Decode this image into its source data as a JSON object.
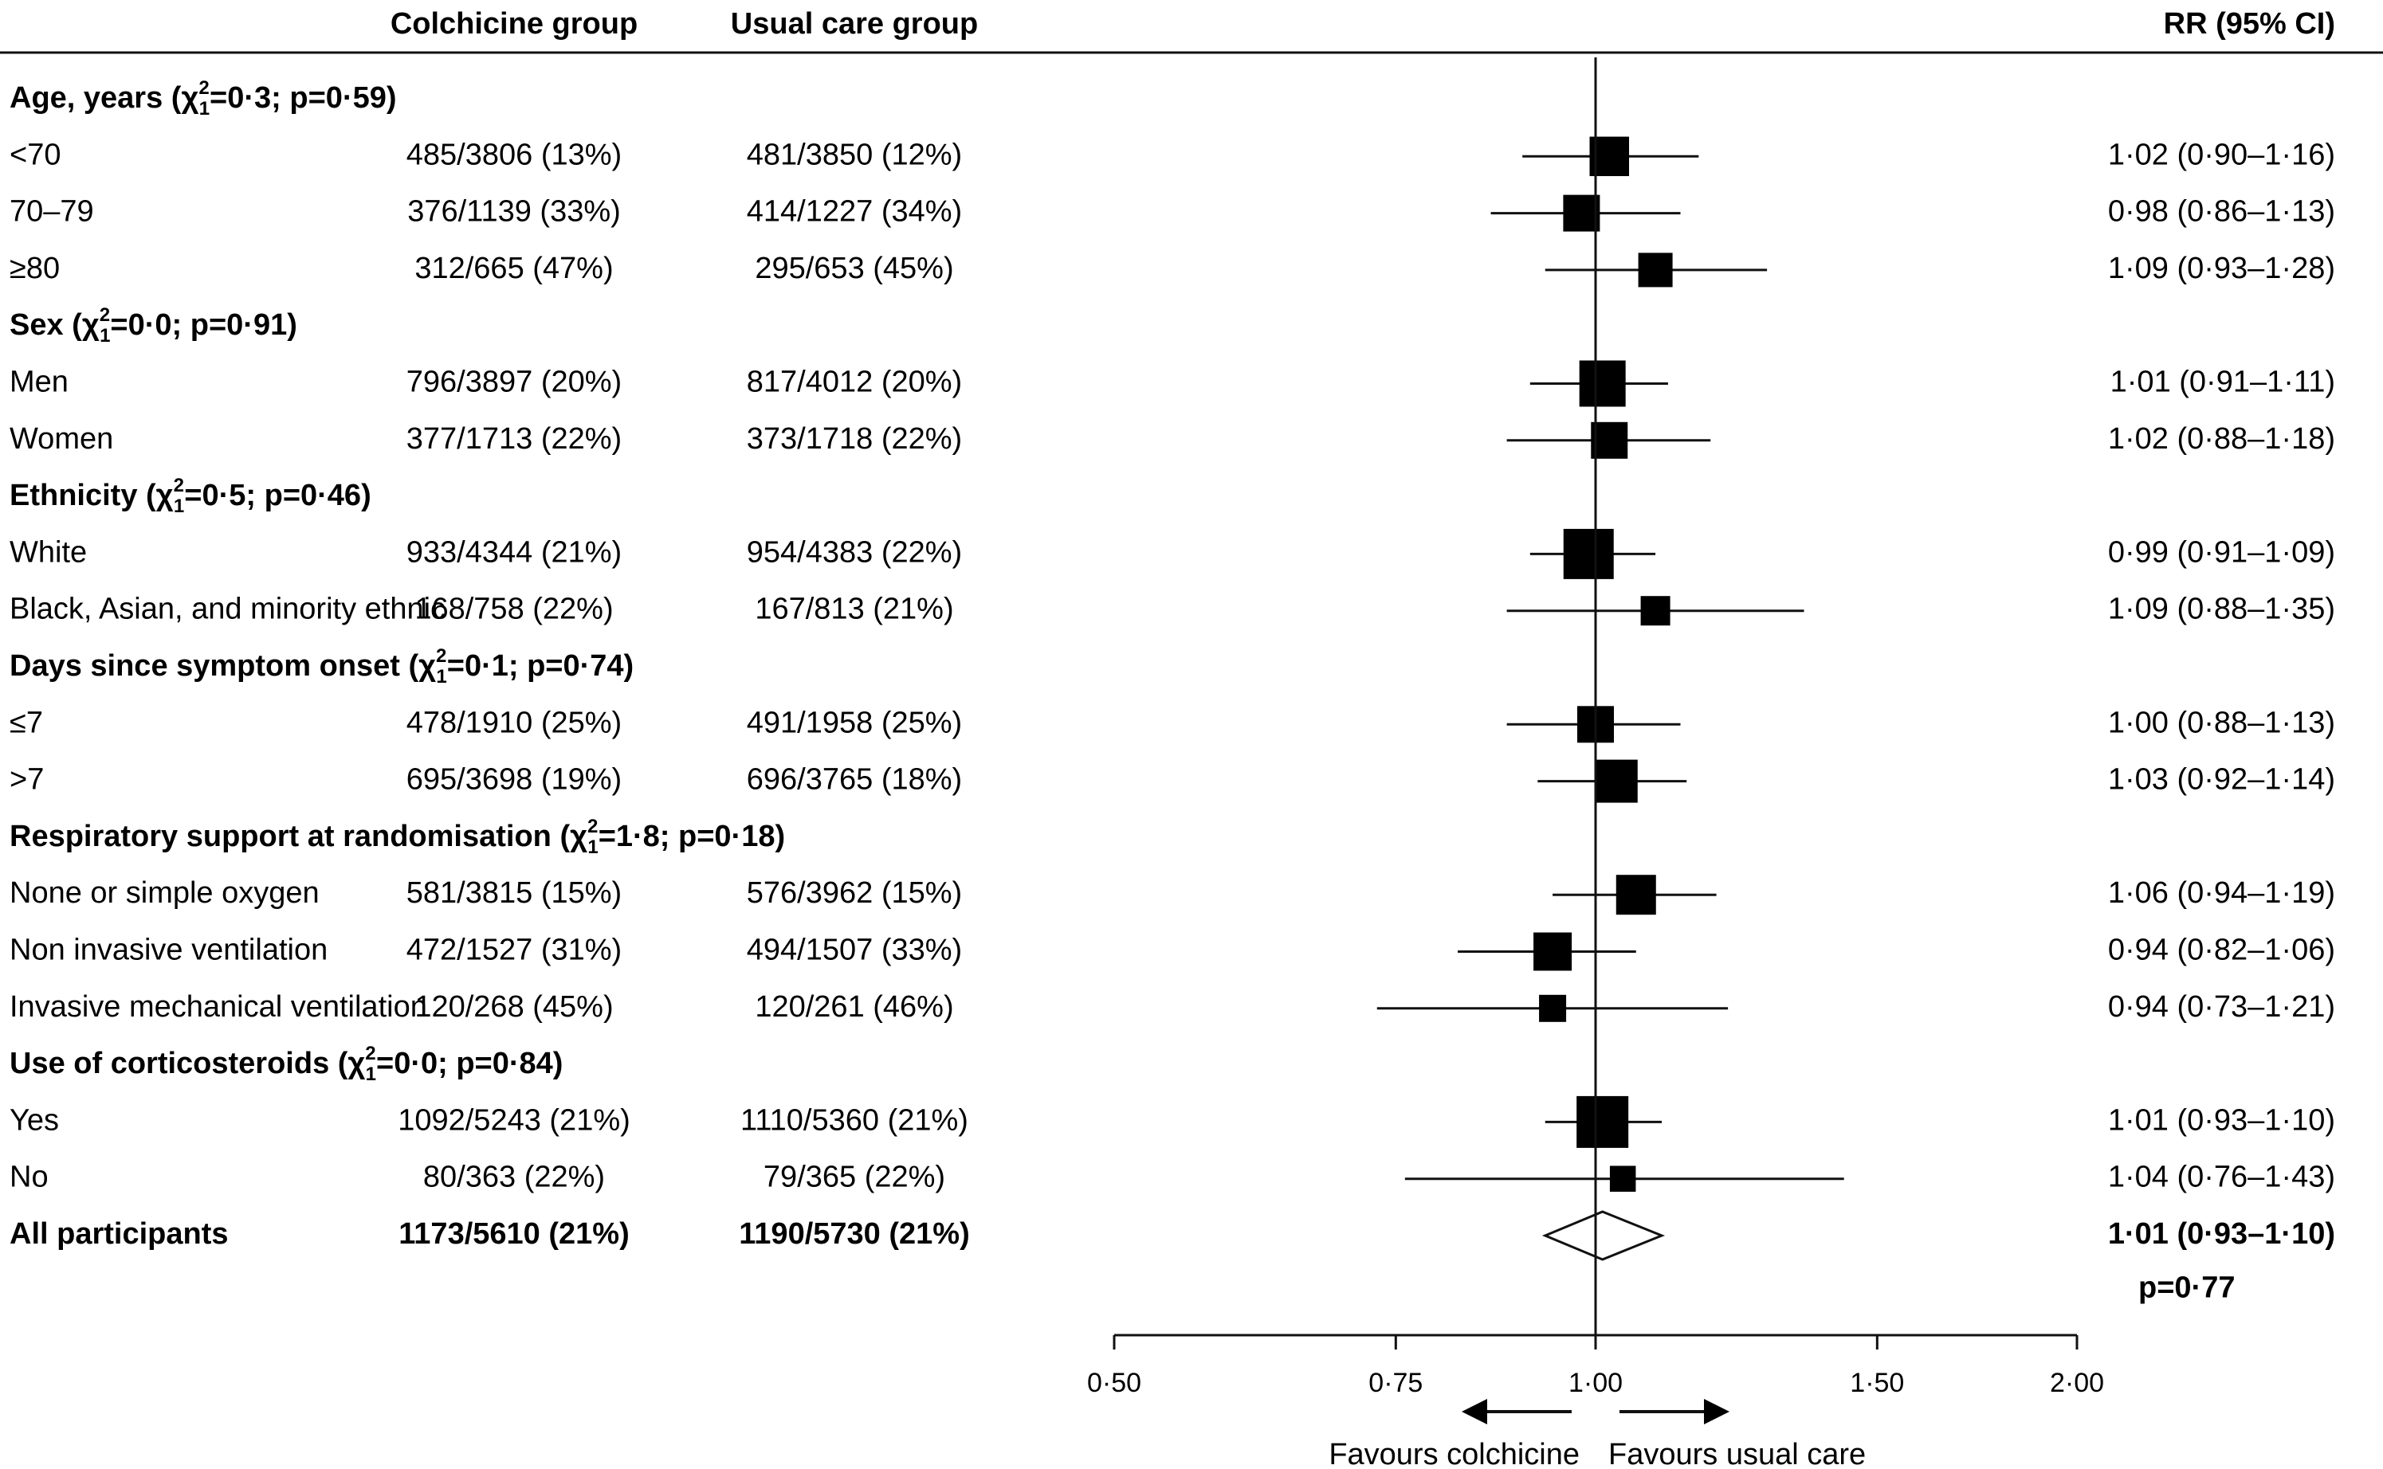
{
  "chart_data": {
    "type": "forest",
    "columns": {
      "colchicine": "Colchicine group",
      "usual_care": "Usual care group",
      "rr": "RR (95% CI)"
    },
    "groups": [
      {
        "title": "Age, years",
        "chi_sup": "2",
        "chi_sub": "1",
        "chi_value": "=0·3; p=0·59)",
        "rows": [
          {
            "label": "<70",
            "colchicine": "485/3806 (13%)",
            "usual_care": "481/3850 (12%)",
            "rr_text": "1·02 (0·90–1·16)",
            "rr": 1.02,
            "lo": 0.9,
            "hi": 1.16,
            "weight": 0.55
          },
          {
            "label": "70–79",
            "colchicine": "376/1139 (33%)",
            "usual_care": "414/1227 (34%)",
            "rr_text": "0·98 (0·86–1·13)",
            "rr": 0.98,
            "lo": 0.86,
            "hi": 1.13,
            "weight": 0.48
          },
          {
            "label": "≥80",
            "colchicine": "312/665 (47%)",
            "usual_care": "295/653 (45%)",
            "rr_text": "1·09 (0·93–1·28)",
            "rr": 1.09,
            "lo": 0.93,
            "hi": 1.28,
            "weight": 0.42
          }
        ]
      },
      {
        "title": "Sex",
        "chi_sup": "2",
        "chi_sub": "1",
        "chi_value": "=0·0; p=0·91)",
        "rows": [
          {
            "label": "Men",
            "colchicine": "796/3897 (20%)",
            "usual_care": "817/4012 (20%)",
            "rr_text": "1·01 (0·91–1·11)",
            "rr": 1.01,
            "lo": 0.91,
            "hi": 1.11,
            "weight": 0.72
          },
          {
            "label": "Women",
            "colchicine": "377/1713 (22%)",
            "usual_care": "373/1718 (22%)",
            "rr_text": "1·02 (0·88–1·18)",
            "rr": 1.02,
            "lo": 0.88,
            "hi": 1.18,
            "weight": 0.48
          }
        ]
      },
      {
        "title": "Ethnicity",
        "chi_sup": "2",
        "chi_sub": "1",
        "chi_value": "=0·5; p=0·46)",
        "rows": [
          {
            "label": "White",
            "colchicine": "933/4344 (21%)",
            "usual_care": "954/4383 (22%)",
            "rr_text": "0·99 (0·91–1·09)",
            "rr": 0.99,
            "lo": 0.91,
            "hi": 1.09,
            "weight": 0.82
          },
          {
            "label": "Black, Asian, and minority ethnic",
            "colchicine": "168/758 (22%)",
            "usual_care": "167/813 (21%)",
            "rr_text": "1·09 (0·88–1·35)",
            "rr": 1.09,
            "lo": 0.88,
            "hi": 1.35,
            "weight": 0.3
          }
        ]
      },
      {
        "title": "Days since symptom onset",
        "chi_sup": "2",
        "chi_sub": "1",
        "chi_value": "=0·1; p=0·74)",
        "rows": [
          {
            "label": "≤7",
            "colchicine": "478/1910 (25%)",
            "usual_care": "491/1958 (25%)",
            "rr_text": "1·00 (0·88–1·13)",
            "rr": 1.0,
            "lo": 0.88,
            "hi": 1.13,
            "weight": 0.48
          },
          {
            "label": ">7",
            "colchicine": "695/3698 (19%)",
            "usual_care": "696/3765 (18%)",
            "rr_text": "1·03 (0·92–1·14)",
            "rr": 1.03,
            "lo": 0.92,
            "hi": 1.14,
            "weight": 0.64
          }
        ]
      },
      {
        "title": "Respiratory support at randomisation",
        "chi_sup": "2",
        "chi_sub": "1",
        "chi_value": "=1·8; p=0·18)",
        "rows": [
          {
            "label": "None or simple oxygen",
            "colchicine": "581/3815 (15%)",
            "usual_care": "576/3962 (15%)",
            "rr_text": "1·06 (0·94–1·19)",
            "rr": 1.06,
            "lo": 0.94,
            "hi": 1.19,
            "weight": 0.56
          },
          {
            "label": "Non invasive ventilation",
            "colchicine": "472/1527 (31%)",
            "usual_care": "494/1507 (33%)",
            "rr_text": "0·94 (0·82–1·06)",
            "rr": 0.94,
            "lo": 0.82,
            "hi": 1.06,
            "weight": 0.52
          },
          {
            "label": "Invasive mechanical ventilation",
            "colchicine": "120/268 (45%)",
            "usual_care": "120/261 (46%)",
            "rr_text": "0·94 (0·73–1·21)",
            "rr": 0.94,
            "lo": 0.73,
            "hi": 1.21,
            "weight": 0.24
          }
        ]
      },
      {
        "title": "Use of corticosteroids",
        "chi_sup": "2",
        "chi_sub": "1",
        "chi_value": "=0·0; p=0·84)",
        "rows": [
          {
            "label": "Yes",
            "colchicine": "1092/5243 (21%)",
            "usual_care": "1110/5360 (21%)",
            "rr_text": "1·01 (0·93–1·10)",
            "rr": 1.01,
            "lo": 0.93,
            "hi": 1.1,
            "weight": 0.86
          },
          {
            "label": "No",
            "colchicine": "80/363 (22%)",
            "usual_care": "79/365 (22%)",
            "rr_text": "1·04 (0·76–1·43)",
            "rr": 1.04,
            "lo": 0.76,
            "hi": 1.43,
            "weight": 0.21
          }
        ]
      }
    ],
    "overall": {
      "label": "All participants",
      "colchicine": "1173/5610 (21%)",
      "usual_care": "1190/5730 (21%)",
      "rr_text": "1·01 (0·93–1·10)",
      "p_text": "p=0·77",
      "rr": 1.01,
      "lo": 0.93,
      "hi": 1.1
    },
    "x_axis": {
      "ticks": [
        0.5,
        0.75,
        1.0,
        1.5,
        2.0
      ],
      "tick_labels": [
        "0·50",
        "0·75",
        "1·00",
        "1·50",
        "2·00"
      ],
      "scale": "log",
      "range": [
        0.5,
        2.0
      ],
      "reference": 1.0
    },
    "favours": {
      "left": "Favours colchicine",
      "right": "Favours usual care"
    }
  }
}
